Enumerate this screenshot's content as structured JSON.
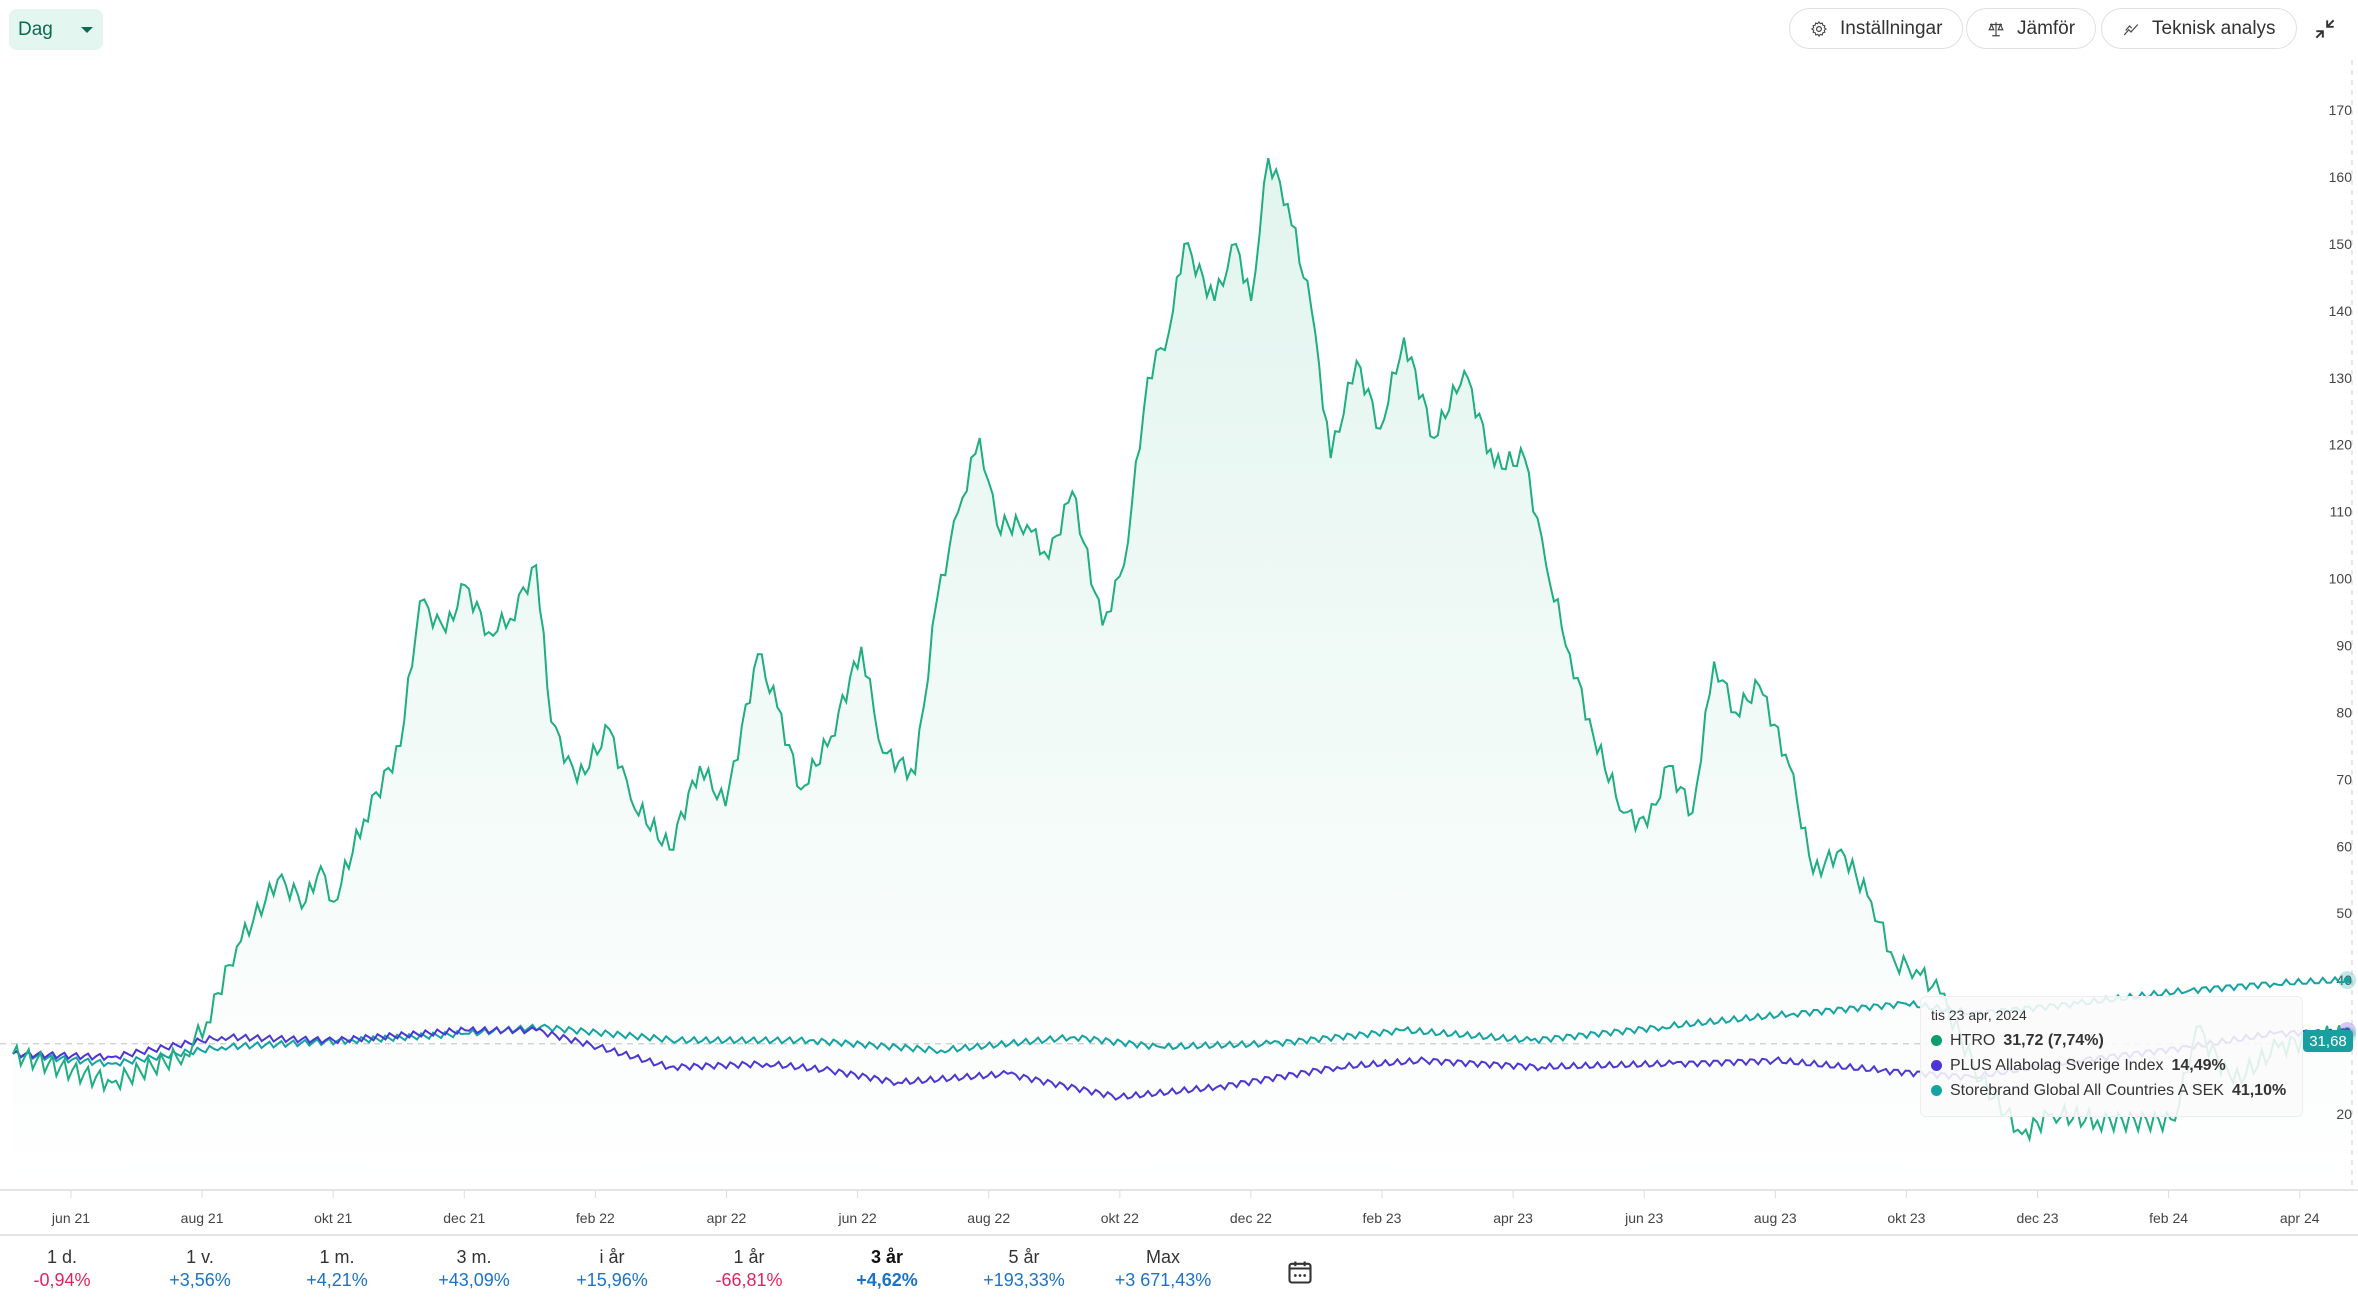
{
  "toolbar": {
    "interval": "Dag",
    "settings_label": "Inställningar",
    "compare_label": "Jämför",
    "technical_label": "Teknisk analys"
  },
  "tooltip": {
    "date": "tis 23 apr, 2024",
    "rows": [
      {
        "name": "HTRO",
        "value": "31,72 (7,74%)",
        "color": "#0f9d6e"
      },
      {
        "name": "PLUS Allabolag Sverige Index",
        "value": "14,49%",
        "color": "#4b35d6"
      },
      {
        "name": "Storebrand Global All Countries A SEK",
        "value": "41,10%",
        "color": "#14a3a3"
      }
    ]
  },
  "price_tag": "31,68",
  "periods": [
    {
      "label": "1 d.",
      "value": "-0,94%",
      "color": "#e0245e"
    },
    {
      "label": "1 v.",
      "value": "+3,56%",
      "color": "#1a73c9"
    },
    {
      "label": "1 m.",
      "value": "+4,21%",
      "color": "#1a73c9"
    },
    {
      "label": "3 m.",
      "value": "+43,09%",
      "color": "#1a73c9"
    },
    {
      "label": "i år",
      "value": "+15,96%",
      "color": "#1a73c9"
    },
    {
      "label": "1 år",
      "value": "-66,81%",
      "color": "#e0245e"
    },
    {
      "label": "3 år",
      "value": "+4,62%",
      "color": "#1a73c9",
      "active": true
    },
    {
      "label": "5 år",
      "value": "+193,33%",
      "color": "#1a73c9"
    },
    {
      "label": "Max",
      "value": "+3 671,43%",
      "color": "#1a73c9"
    }
  ],
  "chart_data": {
    "type": "line",
    "ylim": [
      20,
      170
    ],
    "yticks": [
      170,
      160,
      150,
      140,
      130,
      120,
      110,
      100,
      90,
      80,
      70,
      60,
      50,
      40,
      20
    ],
    "xticks": [
      "jun 21",
      "aug 21",
      "okt 21",
      "dec 21",
      "feb 22",
      "apr 22",
      "jun 22",
      "aug 22",
      "okt 22",
      "dec 22",
      "feb 23",
      "apr 23",
      "jun 23",
      "aug 23",
      "okt 23",
      "dec 23",
      "feb 24",
      "apr 24"
    ],
    "baseline": 30.5,
    "series": [
      {
        "name": "HTRO",
        "color": "#1fae7f",
        "fill": true,
        "points": [
          [
            "2021-05-05",
            29
          ],
          [
            "2021-06-20",
            24.7
          ],
          [
            "2021-07-24",
            29
          ],
          [
            "2021-08-03",
            33.7
          ],
          [
            "2021-08-17",
            45
          ],
          [
            "2021-09-05",
            55
          ],
          [
            "2021-09-18",
            51.7
          ],
          [
            "2021-09-25",
            57
          ],
          [
            "2021-10-01",
            51.7
          ],
          [
            "2021-10-15",
            64
          ],
          [
            "2021-11-01",
            75
          ],
          [
            "2021-11-10",
            96.6
          ],
          [
            "2021-11-22",
            92
          ],
          [
            "2021-12-01",
            99
          ],
          [
            "2021-12-12",
            92
          ],
          [
            "2021-12-22",
            94
          ],
          [
            "2022-01-03",
            102
          ],
          [
            "2022-01-10",
            78.6
          ],
          [
            "2022-01-22",
            69.6
          ],
          [
            "2022-02-06",
            77.5
          ],
          [
            "2022-02-16",
            67
          ],
          [
            "2022-03-06",
            59.5
          ],
          [
            "2022-03-20",
            72
          ],
          [
            "2022-04-01",
            66
          ],
          [
            "2022-04-16",
            88.7
          ],
          [
            "2022-04-25",
            80.8
          ],
          [
            "2022-05-06",
            68.5
          ],
          [
            "2022-05-20",
            76.4
          ],
          [
            "2022-06-03",
            89.8
          ],
          [
            "2022-06-13",
            74
          ],
          [
            "2022-06-28",
            70.8
          ],
          [
            "2022-07-08",
            96.6
          ],
          [
            "2022-07-18",
            110
          ],
          [
            "2022-07-28",
            121
          ],
          [
            "2022-08-05",
            108
          ],
          [
            "2022-08-19",
            108
          ],
          [
            "2022-08-29",
            103
          ],
          [
            "2022-09-09",
            113
          ],
          [
            "2022-09-23",
            93
          ],
          [
            "2022-10-03",
            102
          ],
          [
            "2022-10-14",
            130
          ],
          [
            "2022-10-24",
            137
          ],
          [
            "2022-10-31",
            150
          ],
          [
            "2022-11-14",
            141.5
          ],
          [
            "2022-11-24",
            150
          ],
          [
            "2022-12-01",
            141.5
          ],
          [
            "2022-12-09",
            162.8
          ],
          [
            "2022-12-18",
            156
          ],
          [
            "2022-12-29",
            140.3
          ],
          [
            "2023-01-07",
            118
          ],
          [
            "2023-01-19",
            132.5
          ],
          [
            "2023-01-30",
            122.4
          ],
          [
            "2023-02-10",
            136
          ],
          [
            "2023-02-24",
            121
          ],
          [
            "2023-03-10",
            131
          ],
          [
            "2023-03-24",
            116.8
          ],
          [
            "2023-04-07",
            118
          ],
          [
            "2023-04-17",
            102
          ],
          [
            "2023-04-28",
            88.7
          ],
          [
            "2023-05-09",
            76.4
          ],
          [
            "2023-05-23",
            65
          ],
          [
            "2023-06-03",
            63
          ],
          [
            "2023-06-13",
            72
          ],
          [
            "2023-06-24",
            65
          ],
          [
            "2023-07-04",
            87.6
          ],
          [
            "2023-07-14",
            80
          ],
          [
            "2023-07-25",
            84
          ],
          [
            "2023-08-08",
            72
          ],
          [
            "2023-08-19",
            56
          ],
          [
            "2023-09-01",
            59.5
          ],
          [
            "2023-09-15",
            51.7
          ],
          [
            "2023-09-26",
            42.7
          ],
          [
            "2023-10-06",
            41.5
          ],
          [
            "2023-10-17",
            38
          ],
          [
            "2023-11-05",
            25
          ],
          [
            "2023-11-24",
            17
          ],
          [
            "2023-12-08",
            20
          ],
          [
            "2023-12-29",
            19
          ],
          [
            "2024-02-03",
            19
          ],
          [
            "2024-02-13",
            33
          ],
          [
            "2024-03-01",
            24.7
          ],
          [
            "2024-03-22",
            30
          ],
          [
            "2024-04-08",
            31.5
          ],
          [
            "2024-04-23",
            31.72
          ]
        ]
      },
      {
        "name": "PLUS Allabolag Sverige Index",
        "color": "#4b35d6",
        "fill": false,
        "points": [
          [
            "2021-05-05",
            29
          ],
          [
            "2021-06-20",
            28.5
          ],
          [
            "2021-08-10",
            31.5
          ],
          [
            "2021-10-01",
            31
          ],
          [
            "2021-12-01",
            32.5
          ],
          [
            "2022-01-03",
            32.5
          ],
          [
            "2022-02-01",
            30
          ],
          [
            "2022-03-06",
            27
          ],
          [
            "2022-04-20",
            27.5
          ],
          [
            "2022-05-20",
            26.5
          ],
          [
            "2022-06-20",
            24.7
          ],
          [
            "2022-08-10",
            26
          ],
          [
            "2022-10-01",
            22.5
          ],
          [
            "2022-11-15",
            24
          ],
          [
            "2023-01-10",
            27
          ],
          [
            "2023-02-20",
            28
          ],
          [
            "2023-04-15",
            27
          ],
          [
            "2023-06-15",
            27.5
          ],
          [
            "2023-08-01",
            28
          ],
          [
            "2023-09-20",
            26.5
          ],
          [
            "2023-11-01",
            25.5
          ],
          [
            "2023-12-20",
            28
          ],
          [
            "2024-02-10",
            30
          ],
          [
            "2024-03-20",
            32
          ],
          [
            "2024-04-23",
            32.4
          ]
        ]
      },
      {
        "name": "Storebrand Global All Countries A SEK",
        "color": "#14a3a3",
        "fill": false,
        "points": [
          [
            "2021-05-05",
            29
          ],
          [
            "2021-06-20",
            27.5
          ],
          [
            "2021-08-10",
            30
          ],
          [
            "2021-10-10",
            31
          ],
          [
            "2021-12-01",
            32
          ],
          [
            "2022-01-05",
            33
          ],
          [
            "2022-03-10",
            31
          ],
          [
            "2022-05-10",
            31
          ],
          [
            "2022-07-10",
            29.5
          ],
          [
            "2022-09-10",
            31.5
          ],
          [
            "2022-10-20",
            30
          ],
          [
            "2022-12-10",
            30.5
          ],
          [
            "2023-02-10",
            32.5
          ],
          [
            "2023-04-10",
            31
          ],
          [
            "2023-06-10",
            33
          ],
          [
            "2023-08-10",
            35
          ],
          [
            "2023-10-01",
            36.5
          ],
          [
            "2023-11-01",
            35
          ],
          [
            "2023-12-20",
            36.5
          ],
          [
            "2024-02-10",
            38.5
          ],
          [
            "2024-03-20",
            39.5
          ],
          [
            "2024-04-23",
            40
          ]
        ]
      }
    ]
  }
}
